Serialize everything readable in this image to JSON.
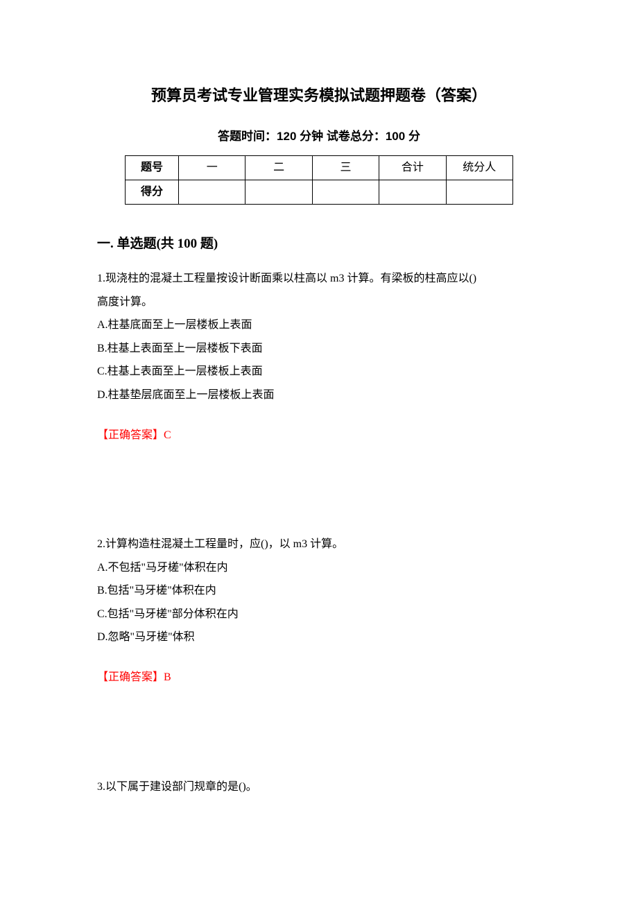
{
  "doc": {
    "title": "预算员考试专业管理实务模拟试题押题卷（答案）",
    "subtitle": "答题时间：120 分钟   试卷总分：100 分",
    "table": {
      "row1": [
        "题号",
        "一",
        "二",
        "三",
        "合计",
        "统分人"
      ],
      "row2_label": "得分"
    },
    "section_heading": "一. 单选题(共 100 题)",
    "questions": [
      {
        "text_lines": [
          "1.现浇柱的混凝土工程量按设计断面乘以柱高以 m3 计算。有梁板的柱高应以()",
          "高度计算。"
        ],
        "options": [
          "A.柱基底面至上一层楼板上表面",
          "B.柱基上表面至上一层楼板下表面",
          "C.柱基上表面至上一层楼板上表面",
          "D.柱基垫层底面至上一层楼板上表面"
        ],
        "answer": "【正确答案】C"
      },
      {
        "text_lines": [
          "2.计算构造柱混凝土工程量时，应()，以 m3 计算。"
        ],
        "options": [
          "A.不包括\"马牙槎\"体积在内",
          "B.包括\"马牙槎\"体积在内",
          "C.包括\"马牙槎\"部分体积在内",
          "D.忽略\"马牙槎\"体积"
        ],
        "answer": "【正确答案】B"
      },
      {
        "text_lines": [
          "3.以下属于建设部门规章的是()。"
        ],
        "options": [],
        "answer": ""
      }
    ]
  }
}
